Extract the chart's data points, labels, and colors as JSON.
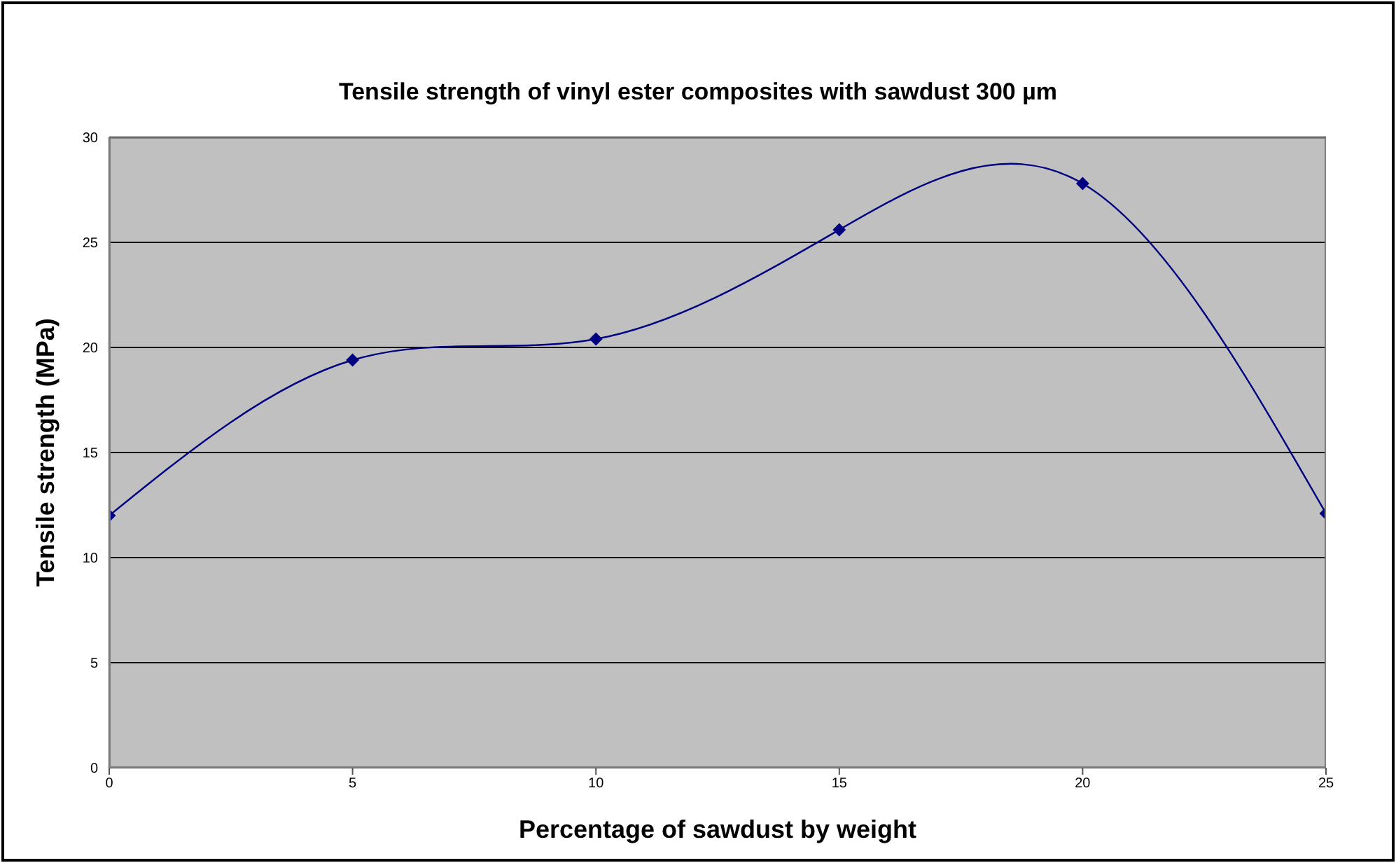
{
  "chart_data": {
    "type": "line",
    "title": "Tensile strength of vinyl ester composites with sawdust 300 µm",
    "xlabel": "Percentage of sawdust by weight",
    "ylabel": "Tensile strength (MPa)",
    "x": [
      0,
      5,
      10,
      15,
      20,
      25
    ],
    "series": [
      {
        "color": "#000080",
        "values": [
          12.0,
          19.4,
          20.4,
          25.6,
          27.8,
          12.1
        ]
      }
    ],
    "xlim": [
      0,
      25
    ],
    "xticks": [
      0,
      5,
      10,
      15,
      20,
      25
    ],
    "ylim": [
      0,
      30
    ],
    "yticks": [
      0,
      5,
      10,
      15,
      20,
      25,
      30
    ],
    "grid": "y",
    "marker": "diamond"
  }
}
